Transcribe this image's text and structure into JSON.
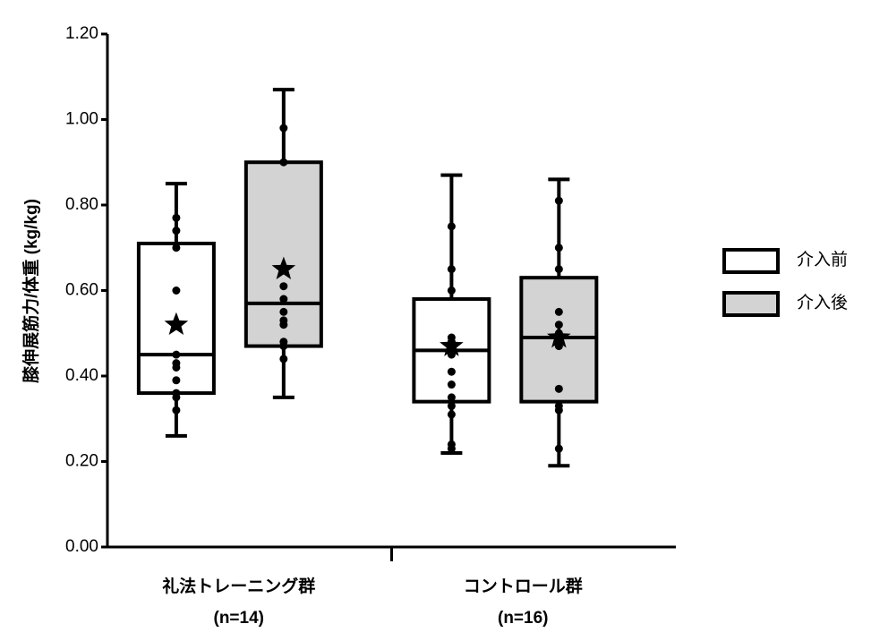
{
  "chart_data": {
    "type": "box",
    "ylabel": "膝伸展筋力/体重 (kg/kg)",
    "categories": [
      "礼法トレーニング群",
      "コントロール群"
    ],
    "category_notes": [
      "(n=14)",
      "(n=16)"
    ],
    "ylim": [
      0,
      1.2
    ],
    "yticks": [
      {
        "value": 0,
        "label": "0.00"
      },
      {
        "value": 0.2,
        "label": "0.20"
      },
      {
        "value": 0.4,
        "label": "0.40"
      },
      {
        "value": 0.6,
        "label": "0.60"
      },
      {
        "value": 0.8,
        "label": "0.80"
      },
      {
        "value": 1.0,
        "label": "1.00"
      },
      {
        "value": 1.2,
        "label": "1.20"
      }
    ],
    "series": [
      {
        "name": "介入前",
        "color": "#ffffff",
        "stats": [
          {
            "min": 0.26,
            "q1": 0.36,
            "median": 0.45,
            "q3": 0.71,
            "max": 0.85,
            "mean": 0.52,
            "points": [
              0.77,
              0.74,
              0.7,
              0.6,
              0.45,
              0.43,
              0.42,
              0.39,
              0.36,
              0.35,
              0.32
            ]
          },
          {
            "min": 0.22,
            "q1": 0.34,
            "median": 0.46,
            "q3": 0.58,
            "max": 0.87,
            "mean": 0.47,
            "points": [
              0.75,
              0.65,
              0.6,
              0.49,
              0.48,
              0.45,
              0.41,
              0.38,
              0.35,
              0.33,
              0.31,
              0.24,
              0.23
            ]
          }
        ]
      },
      {
        "name": "介入後",
        "color": "#d3d3d3",
        "stats": [
          {
            "min": 0.35,
            "q1": 0.47,
            "median": 0.57,
            "q3": 0.9,
            "max": 1.07,
            "mean": 0.65,
            "points": [
              0.98,
              0.9,
              0.65,
              0.61,
              0.58,
              0.55,
              0.53,
              0.52,
              0.48,
              0.47,
              0.44
            ]
          },
          {
            "min": 0.19,
            "q1": 0.34,
            "median": 0.49,
            "q3": 0.63,
            "max": 0.86,
            "mean": 0.49,
            "points": [
              0.81,
              0.7,
              0.65,
              0.55,
              0.52,
              0.5,
              0.47,
              0.37,
              0.33,
              0.32,
              0.23
            ]
          }
        ]
      }
    ]
  }
}
